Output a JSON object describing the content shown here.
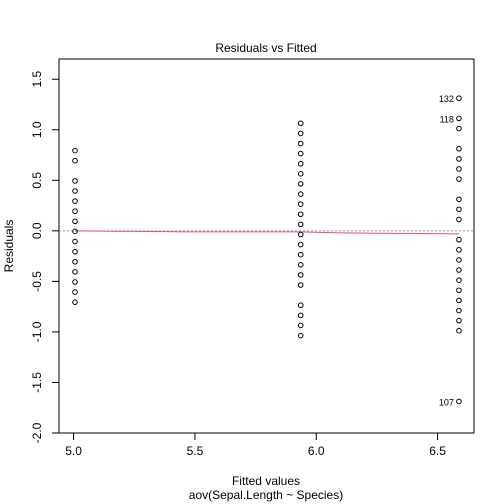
{
  "chart_data": {
    "type": "scatter",
    "title": "Residuals vs Fitted",
    "xlabel": "Fitted values",
    "xlabel_sub": "aov(Sepal.Length ~ Species)",
    "ylabel": "Residuals",
    "xlim": [
      4.94,
      6.65
    ],
    "ylim": [
      -2.0,
      1.7
    ],
    "xticks": [
      5.0,
      5.5,
      6.0,
      6.5
    ],
    "xtick_labels": [
      "5.0",
      "5.5",
      "6.0",
      "6.5"
    ],
    "yticks": [
      -2.0,
      -1.5,
      -1.0,
      -0.5,
      0.0,
      0.5,
      1.0,
      1.5
    ],
    "ytick_labels": [
      "-2.0",
      "-1.5",
      "-1.0",
      "-0.5",
      "0.0",
      "0.5",
      "1.0",
      "1.5"
    ],
    "grid": false,
    "reference_line": {
      "y": 0.0,
      "style": "dotted",
      "color": "#999999"
    },
    "points": [
      {
        "x": 5.006,
        "y": [
          0.794,
          0.694,
          0.494,
          0.394,
          0.294,
          0.194,
          0.094,
          -0.006,
          -0.106,
          -0.206,
          -0.306,
          -0.406,
          -0.506,
          -0.606,
          -0.706
        ]
      },
      {
        "x": 5.936,
        "y": [
          1.064,
          0.964,
          0.864,
          0.764,
          0.664,
          0.564,
          0.464,
          0.364,
          0.264,
          0.164,
          0.064,
          -0.036,
          -0.136,
          -0.236,
          -0.336,
          -0.436,
          -0.536,
          -0.736,
          -0.836,
          -0.936,
          -1.036
        ]
      },
      {
        "x": 6.588,
        "y": [
          1.312,
          1.112,
          1.012,
          0.812,
          0.712,
          0.612,
          0.512,
          0.312,
          0.212,
          0.112,
          -0.088,
          -0.188,
          -0.288,
          -0.388,
          -0.488,
          -0.588,
          -0.688,
          -0.788,
          -0.888,
          -0.988,
          -1.688
        ]
      }
    ],
    "labeled_points": [
      {
        "label": "132",
        "x": 6.588,
        "y": 1.312
      },
      {
        "label": "118",
        "x": 6.588,
        "y": 1.112
      },
      {
        "label": "107",
        "x": 6.588,
        "y": -1.688
      }
    ],
    "smoother": {
      "color": "#DF536B",
      "x": [
        5.006,
        5.47,
        5.936,
        6.1,
        6.588
      ],
      "y": [
        0.0,
        -0.01,
        -0.01,
        -0.02,
        -0.03
      ]
    },
    "colors": {
      "points": "#000000",
      "axis": "#000000"
    }
  }
}
